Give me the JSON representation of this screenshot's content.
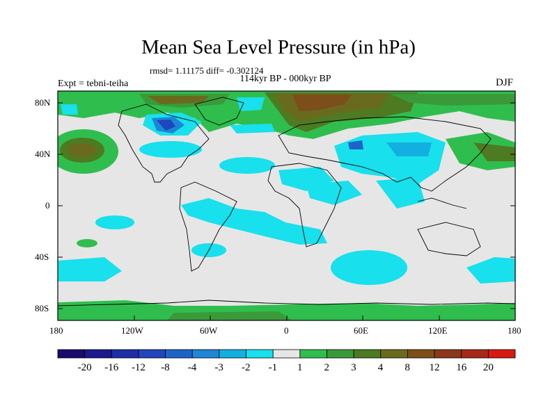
{
  "title": "Mean Sea Level Pressure (in hPa)",
  "stats": "rmsd= 1.11175 diff= -0.302124",
  "period": "114kyr BP - 000kyr BP",
  "experiment": "Expt = tebni-teiha",
  "season": "DJF",
  "lat_labels": [
    "80N",
    "40N",
    "0",
    "40S",
    "80S"
  ],
  "lon_labels": [
    "180",
    "120W",
    "60W",
    "0",
    "60E",
    "120E",
    "180"
  ],
  "colorbar": {
    "labels": [
      "-20",
      "-16",
      "-12",
      "-8",
      "-4",
      "-3",
      "-2",
      "-1",
      "1",
      "2",
      "3",
      "4",
      "8",
      "12",
      "16",
      "20"
    ],
    "colors": [
      "#1a0a6e",
      "#1a1a8c",
      "#1e2ea8",
      "#1f46bc",
      "#1e64c8",
      "#1d86d6",
      "#12b0e0",
      "#18e0ec",
      "#e6e6e6",
      "#2fbe4e",
      "#3a9a3a",
      "#4e7a22",
      "#6a6a1e",
      "#7c4e1a",
      "#8c3818",
      "#a82818",
      "#d81a10"
    ]
  }
}
